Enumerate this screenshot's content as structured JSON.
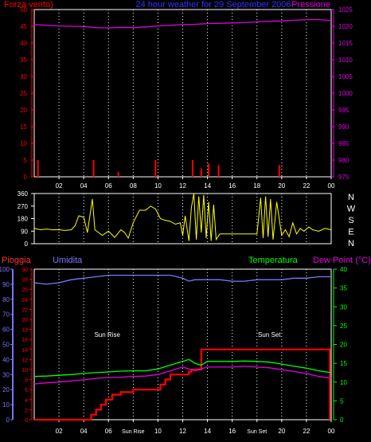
{
  "colors": {
    "background": "#000000",
    "frame": "#ffffff",
    "grid": "#ffffff",
    "wind": "#ff0000",
    "pressure": "#e000e0",
    "title": "#3333ff",
    "direction": "#ffff00",
    "rain": "#ff0000",
    "humidity": "#7777ff",
    "temperature": "#00ff00",
    "dewpoint": "#e000e0",
    "sun_label": "#ffffff"
  },
  "top_chart": {
    "title": "24 hour weather for 29 September 2006",
    "left_label": "Forza vento)",
    "right_label": "Pressione",
    "x_ticks": [
      "02",
      "04",
      "06",
      "08",
      "10",
      "12",
      "14",
      "16",
      "18",
      "20",
      "22",
      "00"
    ],
    "chart_data": {
      "type": "line",
      "x_unit": "hour",
      "xlim": [
        0,
        24
      ],
      "left_axis": {
        "label": "Forza vento)",
        "ylim": [
          0,
          50
        ],
        "ticks": [
          "0",
          "5",
          "10",
          "15",
          "20",
          "25",
          "30",
          "35",
          "40",
          "45",
          "50"
        ]
      },
      "right_axis": {
        "label": "Pressione",
        "ylim": [
          975,
          1025
        ],
        "ticks": [
          "975",
          "980",
          "985",
          "990",
          "995",
          "1000",
          "1005",
          "1010",
          "1015",
          "1020",
          "1025"
        ]
      },
      "series": [
        {
          "name": "Forza vento)",
          "axis": "left",
          "style": "spikes",
          "x": [
            0.3,
            4.8,
            6.8,
            9.8,
            12.8,
            13.5,
            14.1,
            14.9,
            19.8
          ],
          "y": [
            5,
            5,
            1.5,
            5,
            5,
            2.5,
            4,
            3.5,
            3.5
          ]
        },
        {
          "name": "Pressione",
          "axis": "right",
          "x": [
            0,
            1,
            2,
            3,
            4,
            5,
            6,
            7,
            8,
            9,
            10,
            11,
            12,
            13,
            14,
            15,
            16,
            17,
            18,
            19,
            20,
            21,
            22,
            23,
            24
          ],
          "y": [
            1020.5,
            1020.3,
            1020.1,
            1020,
            1019.9,
            1019.6,
            1019.5,
            1019.7,
            1019.6,
            1019.8,
            1020.1,
            1020.3,
            1020.5,
            1020.6,
            1020.8,
            1020.9,
            1021,
            1021.1,
            1021.3,
            1021.5,
            1021.6,
            1021.8,
            1022,
            1022,
            1021.7
          ]
        }
      ]
    }
  },
  "wind_dir_chart": {
    "right_letters": [
      "N",
      "W",
      "S",
      "E",
      "N"
    ],
    "chart_data": {
      "type": "line",
      "x_unit": "hour",
      "xlim": [
        0,
        24
      ],
      "ylim": [
        0,
        360
      ],
      "ticks": [
        "0",
        "90",
        "180",
        "270",
        "360"
      ],
      "series": [
        {
          "name": "",
          "x": [
            0,
            0.5,
            1,
            1.5,
            2,
            2.5,
            3,
            3.3,
            3.6,
            4,
            4.3,
            4.7,
            4.9,
            5.2,
            5.5,
            6,
            6.5,
            7,
            7.3,
            7.6,
            8,
            8.5,
            9,
            9.4,
            9.8,
            10.2,
            10.5,
            11,
            11.4,
            11.8,
            12,
            12.2,
            12.5,
            12.7,
            12.9,
            13.1,
            13.3,
            13.5,
            13.7,
            13.9,
            14.1,
            14.3,
            14.5,
            14.7,
            15,
            15.5,
            16,
            16.5,
            17,
            17.5,
            18,
            18.3,
            18.5,
            18.7,
            18.9,
            19.1,
            19.3,
            19.6,
            20,
            20.3,
            20.6,
            20.9,
            21.2,
            21.5,
            21.8,
            22.2,
            22.5,
            23,
            23.5,
            24
          ],
          "y": [
            110,
            100,
            105,
            100,
            100,
            95,
            100,
            130,
            200,
            190,
            80,
            320,
            100,
            80,
            60,
            90,
            45,
            100,
            80,
            40,
            150,
            240,
            240,
            270,
            250,
            180,
            170,
            160,
            140,
            150,
            60,
            200,
            20,
            260,
            360,
            30,
            340,
            80,
            350,
            40,
            300,
            20,
            280,
            30,
            70,
            70,
            70,
            70,
            70,
            70,
            70,
            330,
            40,
            340,
            50,
            320,
            30,
            300,
            60,
            100,
            50,
            150,
            70,
            110,
            90,
            120,
            100,
            90,
            110,
            100
          ]
        }
      ]
    }
  },
  "bottom_chart": {
    "labels": {
      "rain": "Pioggia",
      "humidity": "Umidita",
      "temperature": "Temperatura",
      "dewpoint": "Dew Point (°C)"
    },
    "x_ticks": [
      "02",
      "04",
      "06",
      "08",
      "10",
      "12",
      "14",
      "16",
      "18",
      "20",
      "22",
      "00"
    ],
    "x_tick_overrides": {
      "3": "Sun Rise",
      "8": "Sun Set"
    },
    "annotations": [
      {
        "text": "Sun Rise",
        "x": 5.9,
        "y_rain": 17
      },
      {
        "text": "Sun Set",
        "x": 19,
        "y_rain": 17
      }
    ],
    "chart_data": {
      "type": "line",
      "x_unit": "hour",
      "xlim": [
        0,
        24
      ],
      "axes": {
        "humidity": {
          "ylim": [
            0,
            100
          ],
          "ticks": [
            "0",
            "10",
            "20",
            "30",
            "40",
            "50",
            "60",
            "70",
            "80",
            "90",
            "100"
          ]
        },
        "rain": {
          "ylim": [
            0,
            30
          ],
          "ticks": [
            "0",
            "2",
            "4",
            "6",
            "8",
            "10",
            "12",
            "14",
            "16",
            "18",
            "20",
            "22",
            "24",
            "26",
            "28",
            "30"
          ]
        },
        "temperature": {
          "ylim": [
            0,
            40
          ],
          "ticks": [
            "0",
            "5",
            "10",
            "15",
            "20",
            "25",
            "30",
            "35",
            "40"
          ]
        }
      },
      "series": [
        {
          "name": "Pioggia",
          "axis": "rain",
          "step": true,
          "x": [
            0,
            4.2,
            4.6,
            5.0,
            5.4,
            5.8,
            6.3,
            7.0,
            8.0,
            9.5,
            10.2,
            10.6,
            11.0,
            12.5,
            12.7,
            13.5,
            23.8,
            23.9
          ],
          "y": [
            0,
            0,
            1,
            2,
            3,
            4,
            5,
            5.5,
            6,
            6,
            7,
            8,
            9,
            9.5,
            10,
            14,
            14,
            0
          ]
        },
        {
          "name": "Umidita",
          "axis": "humidity",
          "x": [
            0,
            1,
            2,
            3,
            4,
            5,
            6,
            7,
            8,
            9,
            10,
            11,
            12,
            12.5,
            13,
            14,
            15,
            16,
            17,
            18,
            19,
            20,
            21,
            22,
            23,
            24
          ],
          "y": [
            91,
            90,
            91,
            93,
            94,
            95,
            96,
            96,
            96,
            96,
            96,
            96,
            94,
            92,
            93,
            93,
            93,
            92,
            92,
            93,
            93,
            93,
            94,
            94,
            95,
            95
          ]
        },
        {
          "name": "Temperatura",
          "axis": "temperature",
          "x": [
            0,
            1,
            2,
            3,
            4,
            5,
            6,
            7,
            8,
            9,
            10,
            11,
            11.5,
            12,
            12.5,
            13,
            13.5,
            14,
            15,
            16,
            17,
            18,
            19,
            20,
            21,
            22,
            23,
            24
          ],
          "y": [
            11.5,
            11.6,
            11.8,
            12,
            12.3,
            12.5,
            12.7,
            12.9,
            13,
            13,
            13.5,
            14.5,
            15,
            15.5,
            16,
            15,
            14.5,
            15.5,
            15.5,
            15.5,
            15.6,
            15.5,
            15.3,
            14.8,
            14.2,
            13.7,
            13,
            12.5
          ]
        },
        {
          "name": "Dew Point (°C)",
          "axis": "temperature",
          "x": [
            0,
            1,
            2,
            3,
            4,
            5,
            6,
            7,
            8,
            9,
            10,
            11,
            11.5,
            12,
            12.5,
            13,
            13.5,
            14,
            15,
            16,
            17,
            18,
            19,
            20,
            21,
            22,
            23,
            24
          ],
          "y": [
            9.5,
            9.8,
            10,
            10.3,
            10.6,
            11,
            11.2,
            11.3,
            11.5,
            11.6,
            12,
            13,
            13.5,
            14,
            13.5,
            13,
            13.5,
            14,
            14,
            14,
            14.2,
            14,
            13.8,
            13.3,
            12.8,
            12.3,
            11.5,
            11
          ]
        }
      ]
    }
  }
}
